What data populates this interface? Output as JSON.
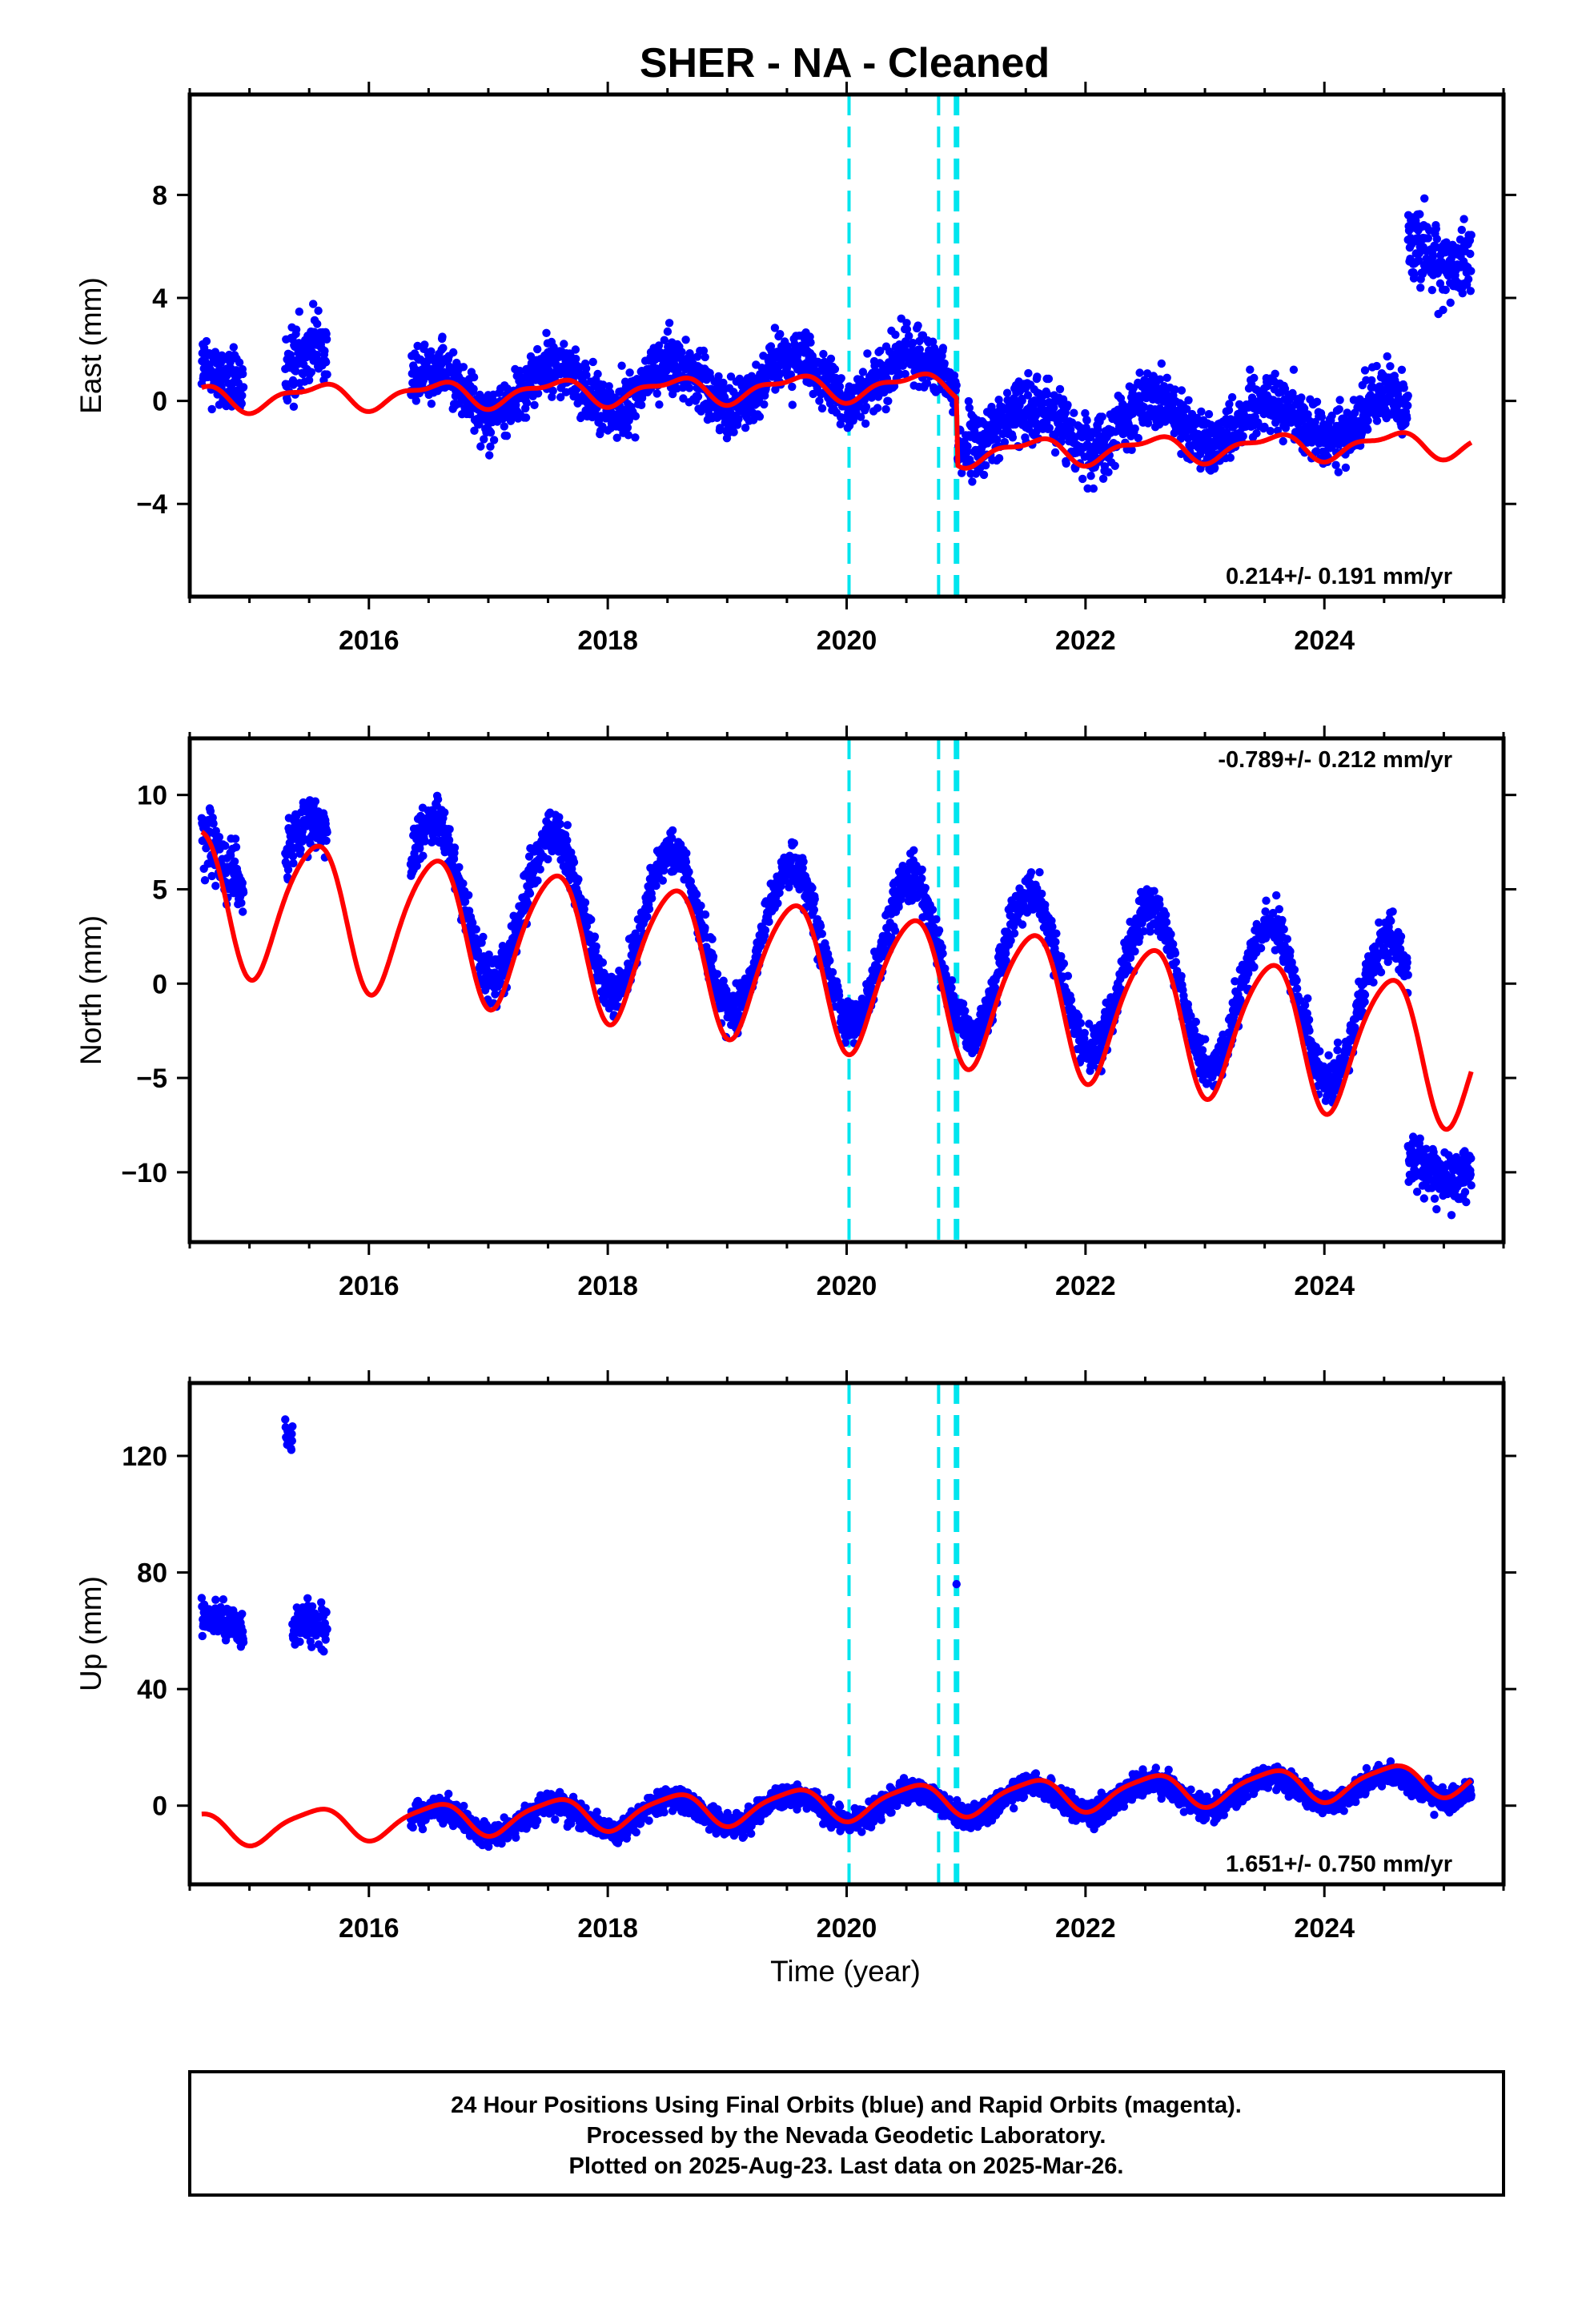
{
  "title": "SHER  - NA - Cleaned",
  "xlabel": "Time (year)",
  "colors": {
    "final_orbits": "#0000ff",
    "model_fit": "#ff0000",
    "offset_lines": "#00e5ee",
    "frame": "#000000"
  },
  "footer": {
    "line1": "24 Hour Positions Using Final Orbits (blue) and Rapid Orbits (magenta).",
    "line2": "Processed by the Nevada Geodetic Laboratory.",
    "line3": "Plotted on 2025-Aug-23. Last data on 2025-Mar-26."
  },
  "chart_data": [
    {
      "type": "scatter",
      "component": "East",
      "ylabel": "East (mm)",
      "rate_label": "0.214+/- 0.191 mm/yr",
      "rate_position": "bottom-right",
      "xlim": [
        2014.5,
        2025.5
      ],
      "ylim": [
        -7.6,
        11.9
      ],
      "x_ticks": [
        2016,
        2018,
        2020,
        2022,
        2024
      ],
      "y_ticks": [
        -4,
        0,
        4,
        8
      ],
      "y_tick_labels": [
        "−4",
        "0",
        "4",
        "8"
      ],
      "offset_lines": [
        2020.02,
        2020.77,
        2020.91,
        2020.93
      ],
      "data_segments": [
        {
          "start": 2014.6,
          "end": 2014.95,
          "level": 0.8,
          "amp": 0.6,
          "noise": 1.3
        },
        {
          "start": 2015.3,
          "end": 2015.65,
          "level": 1.0,
          "amp": 1.2,
          "noise": 1.4
        },
        {
          "start": 2016.35,
          "end": 2020.92,
          "level": 0.3,
          "trend": 0.15,
          "amp": 0.9,
          "noise": 1.1
        },
        {
          "start": 2020.93,
          "end": 2024.7,
          "level": -1.0,
          "trend": 0.1,
          "amp": 0.8,
          "noise": 1.2
        },
        {
          "start": 2024.7,
          "end": 2025.23,
          "level": 6.0,
          "amp": 0.8,
          "noise": 1.5
        }
      ],
      "model_fit": {
        "start": 2014.6,
        "end": 2025.23,
        "base_before": 0.1,
        "base_after": -0.55,
        "trend": 0.08,
        "amp_annual": 0.45,
        "amp_semiannual": 0.2,
        "offsets": [
          {
            "year": 2020.93,
            "size": -2.6
          }
        ]
      }
    },
    {
      "type": "scatter",
      "component": "North",
      "ylabel": "North (mm)",
      "rate_label": "-0.789+/- 0.212 mm/yr",
      "rate_position": "top-right",
      "xlim": [
        2014.5,
        2025.5
      ],
      "ylim": [
        -13.7,
        13.0
      ],
      "x_ticks": [
        2016,
        2018,
        2020,
        2022,
        2024
      ],
      "y_ticks": [
        -10,
        -5,
        0,
        5,
        10
      ],
      "y_tick_labels": [
        "−10",
        "−5",
        "0",
        "5",
        "10"
      ],
      "offset_lines": [
        2020.02,
        2020.77,
        2020.91,
        2020.93
      ],
      "data_segments": [
        {
          "start": 2014.6,
          "end": 2014.95,
          "level": 6.5,
          "amp": 1.5,
          "noise": 1.8
        },
        {
          "start": 2015.3,
          "end": 2015.65,
          "level": 6.5,
          "amp": 2.0,
          "noise": 1.6
        },
        {
          "start": 2016.35,
          "end": 2024.7,
          "level": 4.8,
          "trend": -0.78,
          "amp": 4.0,
          "noise": 1.2
        },
        {
          "start": 2024.7,
          "end": 2025.23,
          "level": -9.5,
          "amp": 0.8,
          "noise": 1.4
        }
      ],
      "model_fit": {
        "start": 2014.6,
        "end": 2025.23,
        "base_before": 4.6,
        "base_after": 4.6,
        "trend": -0.79,
        "amp_annual": 3.7,
        "amp_semiannual": 0.5,
        "offsets": []
      }
    },
    {
      "type": "scatter",
      "component": "Up",
      "ylabel": "Up (mm)",
      "rate_label": "1.651+/- 0.750 mm/yr",
      "rate_position": "bottom-right",
      "xlim": [
        2014.5,
        2025.5
      ],
      "ylim": [
        -27,
        145
      ],
      "x_ticks": [
        2016,
        2018,
        2020,
        2022,
        2024
      ],
      "y_ticks": [
        0,
        40,
        80,
        120
      ],
      "y_tick_labels": [
        "0",
        "40",
        "80",
        "120"
      ],
      "offset_lines": [
        2020.02,
        2020.77,
        2020.91,
        2020.93
      ],
      "data_segments": [
        {
          "start": 2014.6,
          "end": 2014.95,
          "level": 63,
          "amp": 3,
          "noise": 5
        },
        {
          "start": 2015.3,
          "end": 2015.36,
          "level": 128,
          "amp": 0,
          "noise": 5
        },
        {
          "start": 2015.36,
          "end": 2015.65,
          "level": 58,
          "amp": 4,
          "noise": 7
        },
        {
          "start": 2016.35,
          "end": 2025.23,
          "level": -6,
          "trend": 1.5,
          "amp": 5,
          "noise": 4
        }
      ],
      "outliers": [
        {
          "x": 2020.92,
          "y": 76
        }
      ],
      "model_fit": {
        "start": 2014.6,
        "end": 2025.23,
        "base_before": -8,
        "base_after": -8,
        "trend": 1.65,
        "amp_annual": 5.5,
        "amp_semiannual": 1.2,
        "offsets": []
      }
    }
  ]
}
